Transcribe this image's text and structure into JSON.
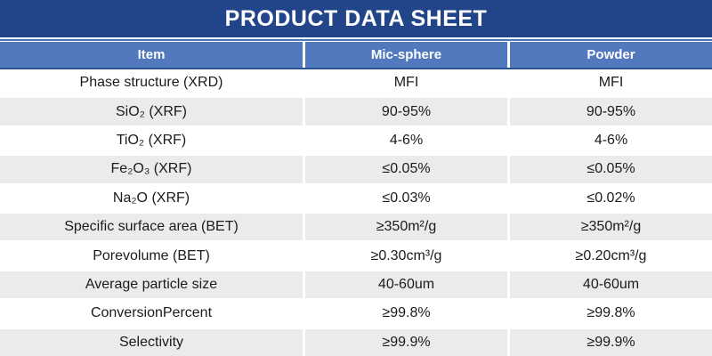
{
  "title": "PRODUCT DATA SHEET",
  "colors": {
    "title_bar_navy": "#214588",
    "header_blue": "#5279BE",
    "header_bottom_rule": "#2C5194",
    "separator_line_blue": "#4C74B6",
    "alt_row_gray": "#EBEBEB",
    "text": "#1B1B1B"
  },
  "table": {
    "columns": [
      "Item",
      "Mic-sphere",
      "Powder"
    ],
    "rows": [
      {
        "item": "Phase structure (XRD)",
        "mic_sphere": "MFI",
        "powder": "MFI"
      },
      {
        "item": "SiO₂ (XRF)",
        "mic_sphere": "90-95%",
        "powder": "90-95%"
      },
      {
        "item": "TiO₂ (XRF)",
        "mic_sphere": "4-6%",
        "powder": "4-6%"
      },
      {
        "item": "Fe₂O₃ (XRF)",
        "mic_sphere": "≤0.05%",
        "powder": "≤0.05%"
      },
      {
        "item": "Na₂O (XRF)",
        "mic_sphere": "≤0.03%",
        "powder": "≤0.02%"
      },
      {
        "item": "Specific surface area (BET)",
        "mic_sphere": "≥350m²/g",
        "powder": "≥350m²/g"
      },
      {
        "item": "Porevolume (BET)",
        "mic_sphere": "≥0.30cm³/g",
        "powder": "≥0.20cm³/g"
      },
      {
        "item": "Average particle size",
        "mic_sphere": "40-60um",
        "powder": "40-60um"
      },
      {
        "item": "ConversionPercent",
        "mic_sphere": "≥99.8%",
        "powder": "≥99.8%"
      },
      {
        "item": "Selectivity",
        "mic_sphere": "≥99.9%",
        "powder": "≥99.9%"
      }
    ]
  }
}
